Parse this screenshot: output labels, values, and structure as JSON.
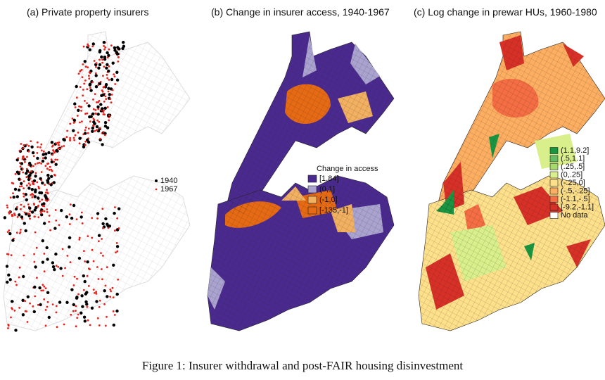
{
  "panels": [
    {
      "title": "(a) Private property insurers",
      "legend": [
        {
          "label": "1940",
          "color": "#000000"
        },
        {
          "label": "1967",
          "color": "#e8221b"
        }
      ]
    },
    {
      "title": "(b) Change in insurer access, 1940-1967",
      "legend_title": "Change in access",
      "legend": [
        {
          "label": "[1,84]",
          "color": "#4b2a8f"
        },
        {
          "label": "(0,1]",
          "color": "#aaa3d0"
        },
        {
          "label": "(-1,0]",
          "color": "#f2b061"
        },
        {
          "label": "[-135,-1]",
          "color": "#e66a14"
        }
      ]
    },
    {
      "title": "(c) Log change in prewar HUs, 1960-1980",
      "legend": [
        {
          "label": "(1.1,9.2]",
          "color": "#1a9641"
        },
        {
          "label": "(.5,1.1]",
          "color": "#66bd63"
        },
        {
          "label": "(.25,.5]",
          "color": "#a6d96a"
        },
        {
          "label": "(0,.25]",
          "color": "#d9ef8b"
        },
        {
          "label": "(-.25,0]",
          "color": "#fee08b"
        },
        {
          "label": "(-.5,-.25]",
          "color": "#fdae61"
        },
        {
          "label": "(-1.1,-.5]",
          "color": "#f46d43"
        },
        {
          "label": "[-9.2,-1.1]",
          "color": "#d73027"
        },
        {
          "label": "No data",
          "color": "#ffffff"
        }
      ]
    }
  ],
  "caption": "Figure 1: Insurer withdrawal and post-FAIR housing disinvestment"
}
